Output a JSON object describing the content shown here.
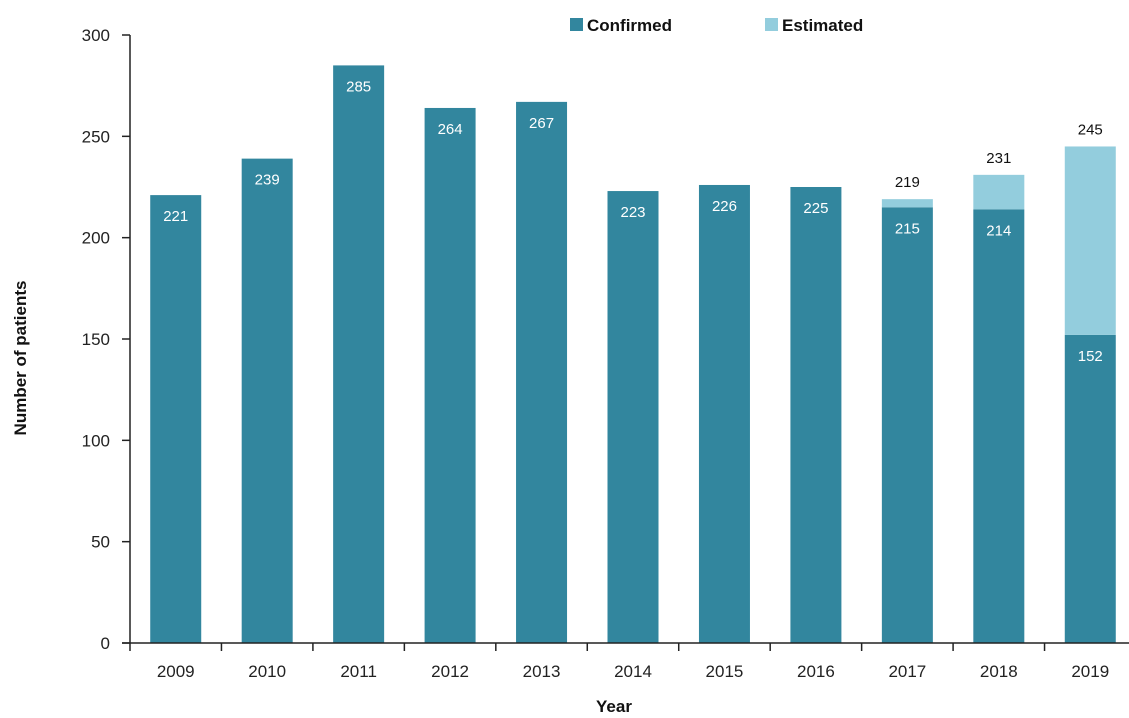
{
  "chart_data": {
    "type": "bar",
    "stacked": true,
    "title": "",
    "xlabel": "Year",
    "ylabel": "Number of patients",
    "ylim": [
      0,
      300
    ],
    "yticks": [
      0,
      50,
      100,
      150,
      200,
      250,
      300
    ],
    "categories": [
      "2009",
      "2010",
      "2011",
      "2012",
      "2013",
      "2014",
      "2015",
      "2016",
      "2017",
      "2018",
      "2019"
    ],
    "series": [
      {
        "name": "Confirmed",
        "color": "#32869e",
        "values": [
          221,
          239,
          285,
          264,
          267,
          223,
          226,
          225,
          215,
          214,
          152
        ]
      },
      {
        "name": "Estimated",
        "color": "#93cddd",
        "values": [
          0,
          0,
          0,
          0,
          0,
          0,
          0,
          0,
          4,
          17,
          93
        ]
      }
    ],
    "totals": [
      null,
      null,
      null,
      null,
      null,
      null,
      null,
      null,
      219,
      231,
      245
    ],
    "legend_position": "top-right",
    "grid": false
  }
}
